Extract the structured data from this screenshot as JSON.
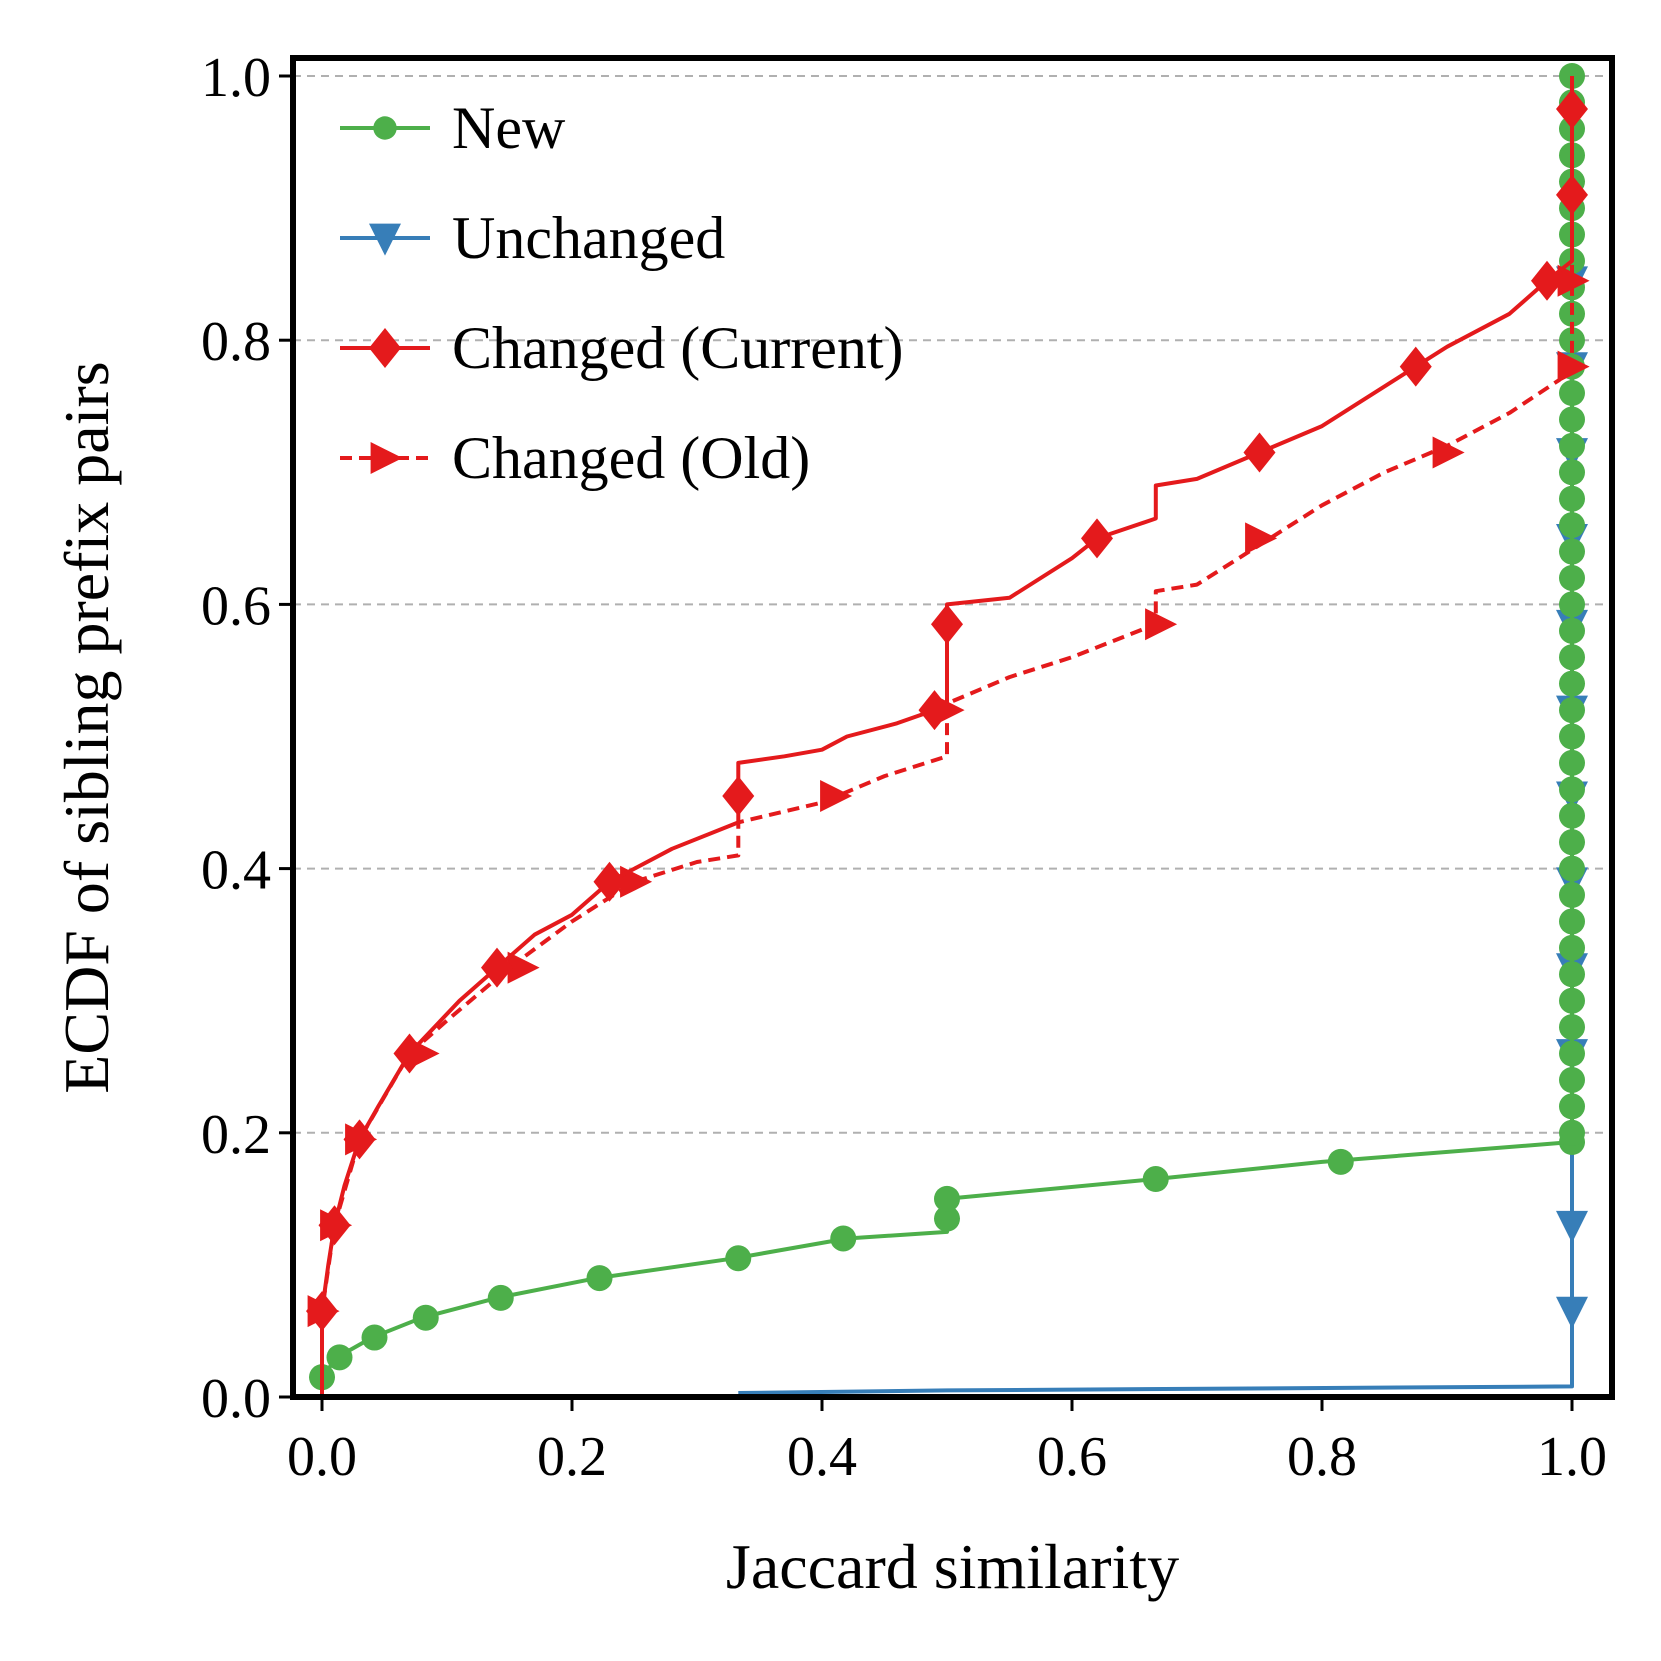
{
  "chart_data": {
    "type": "line",
    "xlabel": "Jaccard similarity",
    "ylabel": "ECDF of sibling prefix pairs",
    "xlim": [
      -0.02,
      1.035
    ],
    "ylim": [
      0.0,
      1.0
    ],
    "xticks": [
      "0.0",
      "0.2",
      "0.4",
      "0.6",
      "0.8",
      "1.0"
    ],
    "yticks": [
      "0.0",
      "0.2",
      "0.4",
      "0.6",
      "0.8",
      "1.0"
    ],
    "grid": "horizontal dashed",
    "legend_position": "top-left",
    "series": [
      {
        "name": "New",
        "color": "#4daf4a",
        "line_style": "solid",
        "marker": "circle",
        "points": [
          [
            0.0,
            0.015
          ],
          [
            0.012,
            0.03
          ],
          [
            0.04,
            0.045
          ],
          [
            0.08,
            0.06
          ],
          [
            0.14,
            0.075
          ],
          [
            0.22,
            0.09
          ],
          [
            0.33,
            0.105
          ],
          [
            0.42,
            0.12
          ],
          [
            0.5,
            0.125
          ],
          [
            0.5,
            0.15
          ],
          [
            0.667,
            0.165
          ],
          [
            0.8,
            0.178
          ],
          [
            1.0,
            0.193
          ],
          [
            1.0,
            1.0
          ]
        ],
        "markers": [
          [
            0.0,
            0.015
          ],
          [
            0.014,
            0.03
          ],
          [
            0.042,
            0.045
          ],
          [
            0.083,
            0.06
          ],
          [
            0.143,
            0.075
          ],
          [
            0.222,
            0.09
          ],
          [
            0.333,
            0.105
          ],
          [
            0.417,
            0.12
          ],
          [
            0.5,
            0.135
          ],
          [
            0.5,
            0.15
          ],
          [
            0.667,
            0.165
          ],
          [
            0.815,
            0.178
          ],
          [
            1.0,
            0.193
          ],
          [
            1.0,
            0.2
          ],
          [
            1.0,
            0.22
          ],
          [
            1.0,
            0.24
          ],
          [
            1.0,
            0.26
          ],
          [
            1.0,
            0.28
          ],
          [
            1.0,
            0.3
          ],
          [
            1.0,
            0.32
          ],
          [
            1.0,
            0.34
          ],
          [
            1.0,
            0.36
          ],
          [
            1.0,
            0.38
          ],
          [
            1.0,
            0.4
          ],
          [
            1.0,
            0.42
          ],
          [
            1.0,
            0.44
          ],
          [
            1.0,
            0.46
          ],
          [
            1.0,
            0.48
          ],
          [
            1.0,
            0.5
          ],
          [
            1.0,
            0.52
          ],
          [
            1.0,
            0.54
          ],
          [
            1.0,
            0.56
          ],
          [
            1.0,
            0.58
          ],
          [
            1.0,
            0.6
          ],
          [
            1.0,
            0.62
          ],
          [
            1.0,
            0.64
          ],
          [
            1.0,
            0.66
          ],
          [
            1.0,
            0.68
          ],
          [
            1.0,
            0.7
          ],
          [
            1.0,
            0.72
          ],
          [
            1.0,
            0.74
          ],
          [
            1.0,
            0.76
          ],
          [
            1.0,
            0.78
          ],
          [
            1.0,
            0.8
          ],
          [
            1.0,
            0.82
          ],
          [
            1.0,
            0.84
          ],
          [
            1.0,
            0.86
          ],
          [
            1.0,
            0.88
          ],
          [
            1.0,
            0.9
          ],
          [
            1.0,
            0.92
          ],
          [
            1.0,
            0.94
          ],
          [
            1.0,
            0.96
          ],
          [
            1.0,
            0.98
          ],
          [
            1.0,
            1.0
          ]
        ]
      },
      {
        "name": "Unchanged",
        "color": "#377eb8",
        "line_style": "solid",
        "marker": "triangle-down",
        "points": [
          [
            0.333,
            0.003
          ],
          [
            0.5,
            0.005
          ],
          [
            1.0,
            0.008
          ],
          [
            1.0,
            0.86
          ]
        ],
        "markers": [
          [
            1.0,
            0.065
          ],
          [
            1.0,
            0.13
          ],
          [
            1.0,
            0.26
          ],
          [
            1.0,
            0.325
          ],
          [
            1.0,
            0.39
          ],
          [
            1.0,
            0.455
          ],
          [
            1.0,
            0.52
          ],
          [
            1.0,
            0.585
          ],
          [
            1.0,
            0.65
          ],
          [
            1.0,
            0.715
          ],
          [
            1.0,
            0.78
          ],
          [
            1.0,
            0.845
          ]
        ]
      },
      {
        "name": "Changed (Current)",
        "color": "#e41a1c",
        "line_style": "solid",
        "marker": "diamond",
        "points": [
          [
            0.0,
            0.0
          ],
          [
            0.0,
            0.065
          ],
          [
            0.005,
            0.1
          ],
          [
            0.01,
            0.13
          ],
          [
            0.018,
            0.16
          ],
          [
            0.03,
            0.195
          ],
          [
            0.045,
            0.22
          ],
          [
            0.07,
            0.26
          ],
          [
            0.09,
            0.28
          ],
          [
            0.11,
            0.3
          ],
          [
            0.14,
            0.325
          ],
          [
            0.17,
            0.35
          ],
          [
            0.2,
            0.365
          ],
          [
            0.23,
            0.39
          ],
          [
            0.25,
            0.4
          ],
          [
            0.28,
            0.415
          ],
          [
            0.333,
            0.435
          ],
          [
            0.333,
            0.48
          ],
          [
            0.37,
            0.485
          ],
          [
            0.4,
            0.49
          ],
          [
            0.42,
            0.5
          ],
          [
            0.46,
            0.51
          ],
          [
            0.49,
            0.52
          ],
          [
            0.5,
            0.525
          ],
          [
            0.5,
            0.6
          ],
          [
            0.55,
            0.605
          ],
          [
            0.6,
            0.635
          ],
          [
            0.62,
            0.65
          ],
          [
            0.667,
            0.665
          ],
          [
            0.667,
            0.69
          ],
          [
            0.7,
            0.695
          ],
          [
            0.75,
            0.715
          ],
          [
            0.8,
            0.735
          ],
          [
            0.85,
            0.765
          ],
          [
            0.875,
            0.78
          ],
          [
            0.9,
            0.795
          ],
          [
            0.95,
            0.82
          ],
          [
            0.98,
            0.845
          ],
          [
            1.0,
            0.86
          ],
          [
            1.0,
            1.0
          ]
        ],
        "markers": [
          [
            0.0,
            0.065
          ],
          [
            0.01,
            0.13
          ],
          [
            0.03,
            0.195
          ],
          [
            0.07,
            0.26
          ],
          [
            0.14,
            0.325
          ],
          [
            0.23,
            0.39
          ],
          [
            0.333,
            0.455
          ],
          [
            0.49,
            0.52
          ],
          [
            0.5,
            0.585
          ],
          [
            0.62,
            0.65
          ],
          [
            0.75,
            0.715
          ],
          [
            0.875,
            0.78
          ],
          [
            0.98,
            0.845
          ],
          [
            1.0,
            0.91
          ],
          [
            1.0,
            0.975
          ]
        ]
      },
      {
        "name": "Changed (Old)",
        "color": "#e41a1c",
        "line_style": "dashed",
        "marker": "triangle-right",
        "points": [
          [
            0.0,
            0.0
          ],
          [
            0.0,
            0.065
          ],
          [
            0.01,
            0.13
          ],
          [
            0.03,
            0.195
          ],
          [
            0.07,
            0.26
          ],
          [
            0.1,
            0.285
          ],
          [
            0.15,
            0.325
          ],
          [
            0.2,
            0.36
          ],
          [
            0.25,
            0.39
          ],
          [
            0.3,
            0.405
          ],
          [
            0.333,
            0.41
          ],
          [
            0.333,
            0.435
          ],
          [
            0.4,
            0.45
          ],
          [
            0.45,
            0.47
          ],
          [
            0.5,
            0.485
          ],
          [
            0.5,
            0.525
          ],
          [
            0.55,
            0.545
          ],
          [
            0.6,
            0.56
          ],
          [
            0.667,
            0.585
          ],
          [
            0.667,
            0.61
          ],
          [
            0.7,
            0.615
          ],
          [
            0.75,
            0.645
          ],
          [
            0.8,
            0.675
          ],
          [
            0.85,
            0.7
          ],
          [
            0.9,
            0.72
          ],
          [
            0.95,
            0.745
          ],
          [
            0.99,
            0.77
          ],
          [
            1.0,
            0.78
          ],
          [
            1.0,
            0.845
          ],
          [
            1.0,
            1.0
          ]
        ],
        "markers": [
          [
            0.0,
            0.065
          ],
          [
            0.01,
            0.13
          ],
          [
            0.03,
            0.195
          ],
          [
            0.08,
            0.26
          ],
          [
            0.16,
            0.325
          ],
          [
            0.25,
            0.39
          ],
          [
            0.41,
            0.455
          ],
          [
            0.5,
            0.52
          ],
          [
            0.67,
            0.585
          ],
          [
            0.75,
            0.65
          ],
          [
            0.9,
            0.715
          ],
          [
            1.0,
            0.78
          ],
          [
            1.0,
            0.845
          ]
        ]
      }
    ]
  }
}
